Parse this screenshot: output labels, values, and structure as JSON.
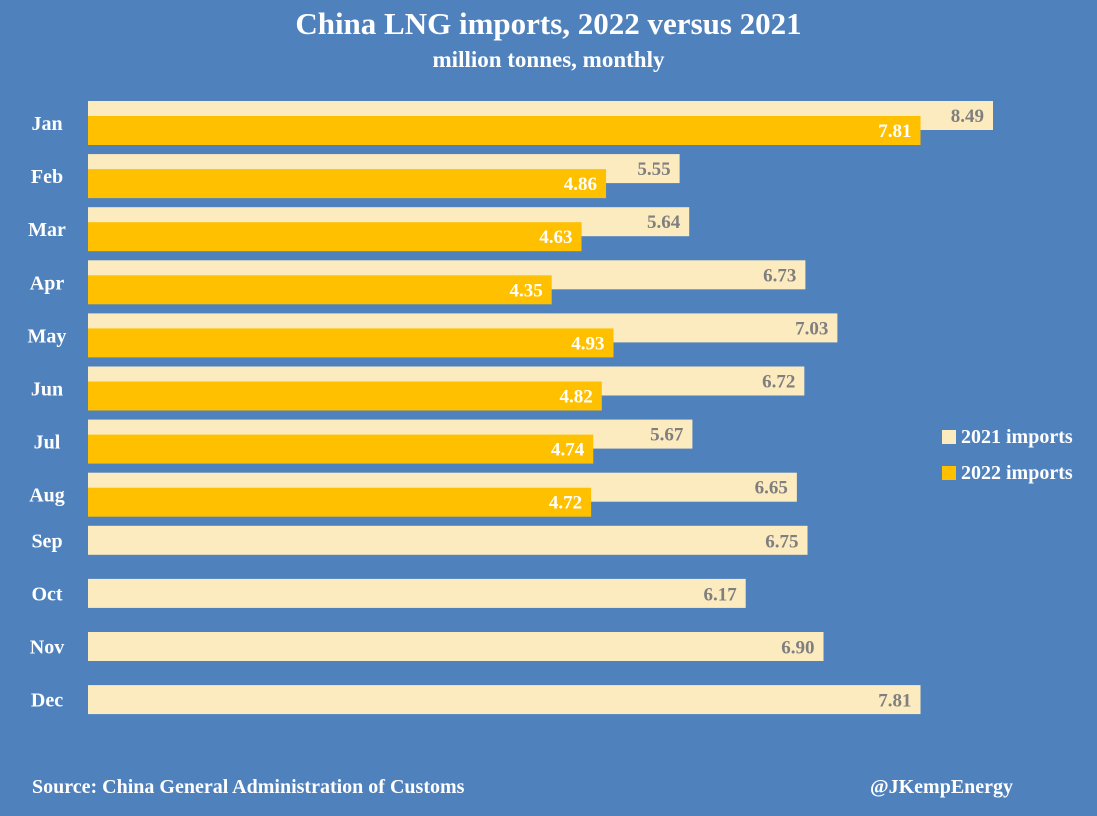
{
  "colors": {
    "background": "#4f81bd",
    "series_2021": "#fdebc0",
    "series_2022": "#ffc000",
    "label_2021": "#7f7f7f",
    "label_2022": "#ffffff",
    "text": "#ffffff"
  },
  "chart_data": {
    "type": "bar",
    "orientation": "horizontal",
    "title": "China LNG imports, 2022 versus 2021",
    "subtitle": "million tonnes, monthly",
    "categories": [
      "Jan",
      "Feb",
      "Mar",
      "Apr",
      "May",
      "Jun",
      "Jul",
      "Aug",
      "Sep",
      "Oct",
      "Nov",
      "Dec"
    ],
    "series": [
      {
        "name": "2021 imports",
        "values": [
          8.49,
          5.55,
          5.64,
          6.73,
          7.03,
          6.72,
          5.67,
          6.65,
          6.75,
          6.17,
          6.9,
          7.81
        ],
        "labels": [
          "8.49",
          "5.55",
          "5.64",
          "6.73",
          "7.03",
          "6.72",
          "5.67",
          "6.65",
          "6.75",
          "6.17",
          "6.90",
          "7.81"
        ]
      },
      {
        "name": "2022 imports",
        "values": [
          7.81,
          4.86,
          4.63,
          4.35,
          4.93,
          4.82,
          4.74,
          4.72,
          null,
          null,
          null,
          null
        ],
        "labels": [
          "7.81",
          "4.86",
          "4.63",
          "4.35",
          "4.93",
          "4.82",
          "4.74",
          "4.72",
          null,
          null,
          null,
          null
        ]
      }
    ],
    "xlim": [
      0,
      9
    ],
    "grid": false,
    "legend_position": "right"
  },
  "footer": {
    "source": "Source: China General Administration of Customs",
    "handle": "@JKempEnergy"
  }
}
